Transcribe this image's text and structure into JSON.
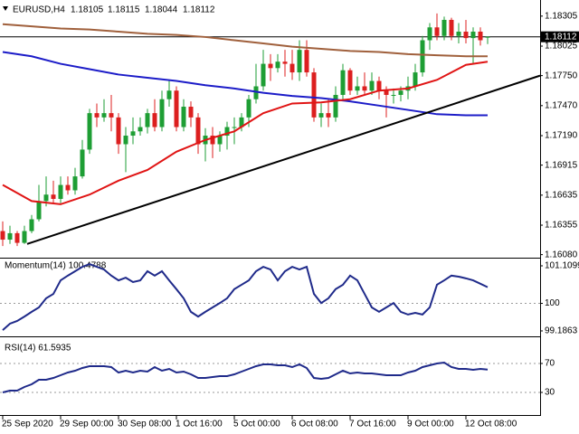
{
  "chart_data": [
    {
      "type": "candlestick",
      "title": "EURUSD,H4",
      "categories": [
        "25 Sep 2020",
        null,
        null,
        null,
        null,
        null,
        null,
        null,
        "29 Sep 00:00",
        null,
        null,
        null,
        null,
        null,
        null,
        null,
        "30 Sep 08:00",
        null,
        null,
        null,
        null,
        null,
        null,
        null,
        "1 Oct 16:00",
        null,
        null,
        null,
        null,
        null,
        null,
        null,
        "5 Oct 00:00",
        null,
        null,
        null,
        null,
        null,
        null,
        null,
        "6 Oct 08:00",
        null,
        null,
        null,
        null,
        null,
        null,
        null,
        "7 Oct 16:00",
        null,
        null,
        null,
        null,
        null,
        null,
        null,
        "9 Oct 00:00",
        null,
        null,
        null,
        null,
        null,
        null,
        null,
        "12 Oct 08:00",
        null,
        null,
        null
      ],
      "open": [
        1.163,
        1.1622,
        1.1628,
        1.1619,
        1.163,
        1.1641,
        1.1658,
        1.1664,
        1.166,
        1.1673,
        1.1668,
        1.1681,
        1.1706,
        1.174,
        1.1736,
        1.174,
        1.1736,
        1.1711,
        1.1719,
        1.1723,
        1.1727,
        1.174,
        1.1727,
        1.1753,
        1.1761,
        1.1727,
        1.1746,
        1.1736,
        1.1711,
        1.1719,
        1.1711,
        1.1719,
        1.1727,
        1.1727,
        1.1736,
        1.1753,
        1.1765,
        1.1786,
        1.1782,
        1.1788,
        1.1786,
        1.1778,
        1.1799,
        1.1778,
        1.1736,
        1.174,
        1.1736,
        1.1757,
        1.178,
        1.1761,
        1.1765,
        1.1761,
        1.177,
        1.1761,
        1.1757,
        1.1757,
        1.1761,
        1.1765,
        1.1778,
        1.1808,
        1.182,
        1.1812,
        1.1827,
        1.1812,
        1.1816,
        1.181,
        1.1816,
        1.18105
      ],
      "high": [
        1.1639,
        1.1635,
        1.163,
        1.1635,
        1.1645,
        1.1673,
        1.1681,
        1.1677,
        1.1681,
        1.1681,
        1.1689,
        1.1715,
        1.1744,
        1.1749,
        1.1753,
        1.1757,
        1.174,
        1.1727,
        1.1736,
        1.1736,
        1.1744,
        1.1753,
        1.1761,
        1.177,
        1.1765,
        1.1753,
        1.1751,
        1.174,
        1.1726,
        1.1727,
        1.1723,
        1.1732,
        1.1736,
        1.174,
        1.1757,
        1.1786,
        1.1799,
        1.1795,
        1.1795,
        1.1799,
        1.1799,
        1.1808,
        1.1808,
        1.1782,
        1.1749,
        1.1753,
        1.1765,
        1.1786,
        1.1782,
        1.1774,
        1.1778,
        1.1778,
        1.1774,
        1.1765,
        1.1763,
        1.1765,
        1.1774,
        1.1786,
        1.1812,
        1.1824,
        1.1833,
        1.183,
        1.1829,
        1.1824,
        1.1827,
        1.182,
        1.182,
        1.18115
      ],
      "low": [
        1.1616,
        1.1618,
        1.1616,
        1.1618,
        1.1628,
        1.1639,
        1.1653,
        1.1656,
        1.1656,
        1.1664,
        1.1664,
        1.1679,
        1.1702,
        1.1727,
        1.1732,
        1.1723,
        1.1702,
        1.1685,
        1.1711,
        1.1719,
        1.1721,
        1.1723,
        1.1723,
        1.1746,
        1.1723,
        1.1723,
        1.1727,
        1.1702,
        1.1695,
        1.1698,
        1.1704,
        1.1706,
        1.1711,
        1.1723,
        1.1727,
        1.1749,
        1.1761,
        1.177,
        1.1778,
        1.1774,
        1.1771,
        1.177,
        1.1774,
        1.1732,
        1.1727,
        1.1727,
        1.1732,
        1.1753,
        1.1757,
        1.1757,
        1.1757,
        1.1757,
        1.1753,
        1.1736,
        1.1749,
        1.1751,
        1.1753,
        1.1761,
        1.1774,
        1.1799,
        1.1808,
        1.1808,
        1.1808,
        1.1805,
        1.1805,
        1.1786,
        1.1803,
        1.18044
      ],
      "close": [
        1.1622,
        1.1628,
        1.1619,
        1.163,
        1.1641,
        1.1658,
        1.1664,
        1.166,
        1.1673,
        1.1668,
        1.1681,
        1.1706,
        1.174,
        1.1736,
        1.174,
        1.1736,
        1.1711,
        1.1719,
        1.1723,
        1.1727,
        1.174,
        1.1727,
        1.1753,
        1.1761,
        1.1727,
        1.1746,
        1.1736,
        1.1711,
        1.1719,
        1.1711,
        1.1719,
        1.1727,
        1.1727,
        1.1736,
        1.1753,
        1.1765,
        1.1786,
        1.1782,
        1.1788,
        1.1786,
        1.1778,
        1.1799,
        1.1778,
        1.1736,
        1.174,
        1.1736,
        1.1757,
        1.178,
        1.1761,
        1.1765,
        1.1761,
        1.177,
        1.1761,
        1.1757,
        1.1757,
        1.1761,
        1.1765,
        1.1778,
        1.1808,
        1.182,
        1.1812,
        1.1827,
        1.1812,
        1.1816,
        1.181,
        1.1816,
        1.1808,
        1.18112
      ],
      "up_color": "#1e9e34",
      "down_color": "#dc1f1f",
      "ylim": [
        1.1606,
        1.1843
      ],
      "yticks": [
        1.18305,
        1.18025,
        {
          "value": 1.1775,
          "label": "1.17750"
        },
        {
          "value": 1.1747,
          "label": "1.17470"
        },
        {
          "value": 1.1719,
          "label": "1.17190"
        },
        1.16915,
        1.16635,
        1.16355,
        {
          "value": 1.1608,
          "label": "1.16080"
        }
      ],
      "current_price": 1.18112,
      "lines": [
        {
          "color": "#a0603c",
          "x": [
            0,
            4,
            8,
            12,
            16,
            20,
            24,
            28,
            32,
            36,
            40,
            44,
            48,
            52,
            56,
            60,
            64,
            67
          ],
          "values": [
            1.1823,
            1.1821,
            1.1819,
            1.1818,
            1.1816,
            1.1814,
            1.1813,
            1.1811,
            1.1808,
            1.1805,
            1.1802,
            1.18,
            1.1798,
            1.1797,
            1.1795,
            1.1794,
            1.1793,
            1.1793
          ]
        },
        {
          "color": "#1c1cc8",
          "x": [
            0,
            4,
            8,
            12,
            16,
            20,
            24,
            28,
            32,
            36,
            40,
            44,
            48,
            52,
            56,
            60,
            64,
            67
          ],
          "values": [
            1.1797,
            1.1793,
            1.1786,
            1.1781,
            1.1776,
            1.1773,
            1.177,
            1.1766,
            1.1763,
            1.1759,
            1.1756,
            1.1754,
            1.1751,
            1.1747,
            1.1743,
            1.1739,
            1.1738,
            1.1738
          ]
        },
        {
          "color": "#e01414",
          "x": [
            0,
            4,
            8,
            12,
            16,
            20,
            24,
            28,
            32,
            36,
            40,
            44,
            48,
            52,
            56,
            60,
            64,
            67
          ],
          "values": [
            1.1673,
            1.1658,
            1.1655,
            1.1664,
            1.1677,
            1.1687,
            1.1704,
            1.1715,
            1.1723,
            1.174,
            1.1749,
            1.175,
            1.1753,
            1.1761,
            1.1763,
            1.1771,
            1.1785,
            1.1788
          ]
        }
      ],
      "trend_line": {
        "color": "#000000",
        "x": [
          3.375,
          74.25
        ],
        "values": [
          1.1618,
          1.1775
        ]
      }
    },
    {
      "type": "line",
      "title": "Momentum(14) 100.4788",
      "color": "#1f2a8a",
      "values": [
        99.21,
        99.4,
        99.48,
        99.61,
        99.75,
        99.88,
        100.15,
        100.28,
        100.68,
        100.82,
        100.95,
        101.08,
        101.16,
        101.08,
        101.0,
        100.82,
        100.68,
        100.76,
        100.63,
        100.68,
        100.95,
        100.82,
        100.95,
        100.68,
        100.42,
        100.15,
        99.75,
        99.61,
        99.75,
        99.88,
        100.01,
        100.15,
        100.42,
        100.55,
        100.68,
        100.95,
        101.08,
        101.0,
        100.68,
        100.95,
        101.08,
        101.0,
        101.08,
        100.28,
        100.01,
        100.15,
        100.42,
        100.55,
        100.82,
        100.68,
        100.28,
        99.88,
        99.75,
        99.88,
        100.01,
        99.75,
        99.67,
        99.72,
        99.67,
        99.88,
        100.55,
        100.68,
        100.82,
        100.79,
        100.74,
        100.68,
        100.58,
        100.4788
      ],
      "ylim": [
        99.052,
        101.297
      ],
      "yticks": [
        101.1099,
        100,
        99.1863
      ],
      "levels": [
        100
      ]
    },
    {
      "type": "line",
      "title": "RSI(14) 61.5935",
      "color": "#1f2a8a",
      "values": [
        30,
        32.5,
        32.5,
        37.5,
        41.25,
        47.5,
        47.5,
        50,
        53.75,
        57.5,
        60,
        63.75,
        66.25,
        66.25,
        66.25,
        65,
        57.5,
        60,
        57.5,
        60,
        58.75,
        65,
        60,
        62.5,
        57.5,
        58.75,
        55,
        50,
        50,
        51.25,
        52.5,
        52.5,
        55,
        58.75,
        62.5,
        66.25,
        68.75,
        68.75,
        67.5,
        67.5,
        65,
        68.75,
        63.75,
        50,
        48.75,
        50,
        55,
        60,
        56.25,
        57.5,
        56.25,
        56.25,
        55,
        53.75,
        53.75,
        53.75,
        57.5,
        60,
        65,
        67.5,
        70,
        71.25,
        65,
        62.5,
        62.5,
        61.25,
        62.5,
        61.5935
      ],
      "ylim": [
        0,
        100
      ],
      "yticks": [
        70,
        30
      ],
      "levels": [
        70,
        30
      ]
    }
  ]
}
